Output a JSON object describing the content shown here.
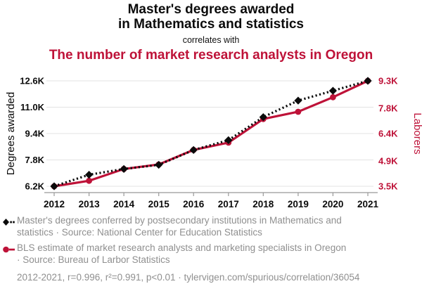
{
  "header": {
    "title_line1": "Master's degrees awarded",
    "title_line2": "in Mathematics and statistics",
    "connector": "correlates with",
    "subtitle": "The number of market research analysts in Oregon"
  },
  "colors": {
    "accent_red": "#be1238",
    "black": "#0b0b0b",
    "gridline": "#e3e3e3",
    "axis_line": "#999999",
    "legend_gray": "#8f8f8f"
  },
  "chart_data": {
    "type": "line",
    "x": [
      2012,
      2013,
      2014,
      2015,
      2016,
      2017,
      2018,
      2019,
      2020,
      2021
    ],
    "series": [
      {
        "name": "Master's degrees awarded in Mathematics and statistics",
        "axis": "left",
        "color": "#0b0b0b",
        "style": "dotted",
        "marker": "diamond",
        "values_k": [
          6.2,
          6.9,
          7.25,
          7.5,
          8.4,
          9.0,
          10.4,
          11.4,
          12.0,
          12.6
        ]
      },
      {
        "name": "Market research analysts in Oregon",
        "axis": "right",
        "color": "#be1238",
        "style": "solid",
        "marker": "circle",
        "values_k": [
          3.5,
          3.8,
          4.45,
          4.7,
          5.5,
          5.9,
          7.2,
          7.6,
          8.4,
          9.3
        ]
      }
    ],
    "left_axis": {
      "label": "Degrees awarded",
      "range": [
        6.2,
        12.6
      ],
      "tick_values": [
        6.2,
        7.8,
        9.4,
        11.0,
        12.6
      ],
      "tick_labels": [
        "6.2K",
        "7.8K",
        "9.4K",
        "11.0K",
        "12.6K"
      ]
    },
    "right_axis": {
      "label": "Laborers",
      "range": [
        3.5,
        9.3
      ],
      "tick_values": [
        3.5,
        4.9,
        6.4,
        7.8,
        9.3
      ],
      "tick_labels": [
        "3.5K",
        "4.9K",
        "6.4K",
        "7.8K",
        "9.3K"
      ]
    },
    "grid": true,
    "legend_position": "below"
  },
  "legend": {
    "items": [
      {
        "marker": "black-diamond-dotted-line",
        "label": "Master's degrees conferred by postsecondary institutions in Mathematics and\nstatistics · Source: National Center for Education Statistics"
      },
      {
        "marker": "red-circle-solid-line",
        "label": "BLS estimate of market research analysts and marketing specialists in Oregon\n· Source: Bureau of Larbor Statistics"
      }
    ],
    "stats_line": "2012-2021, r=0.996, r²=0.991, p<0.01 · tylervigen.com/spurious/correlation/36054"
  }
}
